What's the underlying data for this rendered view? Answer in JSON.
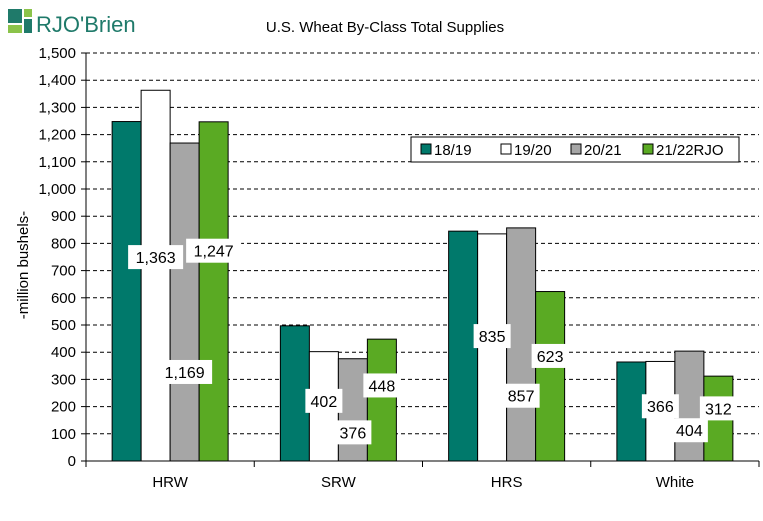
{
  "logo": {
    "text": "RJO'Brien"
  },
  "chart_data": {
    "type": "bar",
    "title": "U.S. Wheat By-Class Total Supplies",
    "xlabel": "",
    "ylabel": "-million bushels-",
    "ylim": [
      0,
      1500
    ],
    "ytick_step": 100,
    "grid": true,
    "legend_position": "top-right",
    "categories": [
      "HRW",
      "SRW",
      "HRS",
      "White"
    ],
    "series": [
      {
        "name": "18/19",
        "color": "#00796B",
        "values": [
          1248,
          497,
          845,
          364
        ]
      },
      {
        "name": "19/20",
        "color": "#FFFFFF",
        "values": [
          1363,
          402,
          835,
          366
        ]
      },
      {
        "name": "20/21",
        "color": "#A6A6A6",
        "values": [
          1169,
          376,
          857,
          404
        ]
      },
      {
        "name": "21/22RJO",
        "color": "#5AAA23",
        "values": [
          1247,
          448,
          623,
          312
        ]
      }
    ],
    "data_labels": [
      {
        "series": "19/20",
        "category": "HRW",
        "text": "1,363"
      },
      {
        "series": "20/21",
        "category": "HRW",
        "text": "1,169"
      },
      {
        "series": "21/22RJO",
        "category": "HRW",
        "text": "1,247"
      },
      {
        "series": "19/20",
        "category": "SRW",
        "text": "402"
      },
      {
        "series": "20/21",
        "category": "SRW",
        "text": "376"
      },
      {
        "series": "21/22RJO",
        "category": "SRW",
        "text": "448"
      },
      {
        "series": "19/20",
        "category": "HRS",
        "text": "835"
      },
      {
        "series": "20/21",
        "category": "HRS",
        "text": "857"
      },
      {
        "series": "21/22RJO",
        "category": "HRS",
        "text": "623"
      },
      {
        "series": "19/20",
        "category": "White",
        "text": "366"
      },
      {
        "series": "20/21",
        "category": "White",
        "text": "404"
      },
      {
        "series": "21/22RJO",
        "category": "White",
        "text": "312"
      }
    ]
  }
}
